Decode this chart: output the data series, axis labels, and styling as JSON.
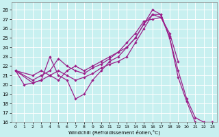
{
  "xlabel": "Windchill (Refroidissement éolien,°C)",
  "bg_color": "#c8f0f0",
  "line_color": "#9b1f8a",
  "grid_color": "#ffffff",
  "xlim": [
    -0.5,
    23.5
  ],
  "ylim": [
    16,
    28.8
  ],
  "xticks": [
    0,
    1,
    2,
    3,
    4,
    5,
    6,
    7,
    8,
    9,
    10,
    11,
    12,
    13,
    14,
    15,
    16,
    17,
    18,
    19,
    20,
    21,
    22,
    23
  ],
  "yticks": [
    16,
    17,
    18,
    19,
    20,
    21,
    22,
    23,
    24,
    25,
    26,
    27,
    28
  ],
  "series": [
    {
      "x": [
        0,
        1,
        2,
        3,
        4,
        5,
        6,
        7,
        8,
        9,
        10,
        11,
        12,
        13,
        14,
        15,
        16,
        17,
        18,
        19,
        20,
        21
      ],
      "y": [
        21.5,
        20.0,
        20.2,
        20.5,
        23.0,
        21.0,
        20.5,
        18.5,
        19.0,
        20.5,
        21.5,
        22.5,
        23.0,
        24.0,
        25.0,
        26.5,
        27.5,
        27.5,
        25.0,
        20.8,
        18.2,
        16.0
      ]
    },
    {
      "x": [
        0,
        2,
        3,
        4,
        5,
        6,
        7,
        8,
        9,
        10,
        11,
        12,
        13,
        14,
        15,
        16,
        17,
        18,
        19
      ],
      "y": [
        21.5,
        20.5,
        21.0,
        21.5,
        22.8,
        22.0,
        21.5,
        21.2,
        21.8,
        22.2,
        22.8,
        23.5,
        24.5,
        25.5,
        26.8,
        27.0,
        27.2,
        25.5,
        22.5
      ]
    },
    {
      "x": [
        0,
        2,
        3,
        4,
        5,
        6,
        7,
        8,
        9,
        10,
        11,
        12,
        13,
        14,
        15,
        16,
        17,
        18
      ],
      "y": [
        21.5,
        20.2,
        20.5,
        21.0,
        21.5,
        21.0,
        20.5,
        20.8,
        21.2,
        21.8,
        22.2,
        22.5,
        23.0,
        24.5,
        26.0,
        27.5,
        27.2,
        25.2
      ]
    },
    {
      "x": [
        0,
        2,
        3,
        4,
        5,
        6,
        7,
        8,
        9,
        10,
        11,
        12,
        13,
        14,
        15,
        16,
        17,
        18,
        19,
        20,
        21,
        22,
        23
      ],
      "y": [
        21.5,
        21.0,
        21.5,
        21.0,
        20.5,
        21.5,
        22.0,
        21.5,
        22.0,
        22.5,
        23.0,
        23.5,
        24.0,
        25.0,
        26.5,
        28.0,
        27.5,
        25.0,
        21.5,
        18.5,
        16.5,
        16.0,
        16.0
      ]
    }
  ]
}
